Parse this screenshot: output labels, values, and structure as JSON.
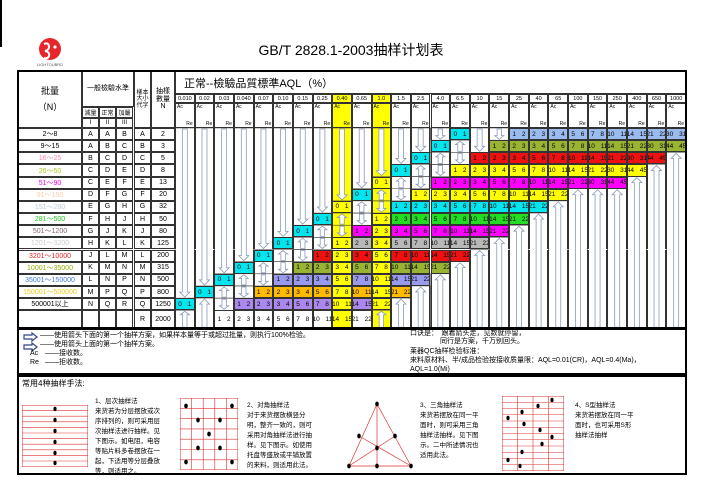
{
  "title": "GB/T 2828.1-2003抽样计划表",
  "logo": {
    "text": "LIGHTOUBRD",
    "color": "#e8252b"
  },
  "header": {
    "lot_label": "批量",
    "lot_unit": "（N）",
    "level_group": "一般檢驗水準",
    "level_names": [
      "減量",
      "正常",
      "加嚴"
    ],
    "level_numerals": [
      "I",
      "II",
      "III"
    ],
    "letter_label": "樣本大小代字",
    "n_label": "抽樣數量",
    "n_symbol": "N",
    "aql_title": "正常--檢驗品質標準AQL（%）",
    "ac": "Ac",
    "re": "Re",
    "aql_values": [
      "0.010",
      "0.02",
      "0.03",
      "0.040",
      "0.07",
      "0.10",
      "0.15",
      "0.25",
      "0.40",
      "0.65",
      "1.0",
      "1.5",
      "2.5",
      "4.0",
      "6.5",
      "10",
      "15",
      "25",
      "40",
      "65",
      "100",
      "150",
      "250",
      "400",
      "650",
      "1000"
    ],
    "highlight_columns": [
      "0.40",
      "1.0"
    ]
  },
  "colors": {
    "highlight": "#ffff00",
    "zero_one": "#00e5ee",
    "arrow": "#8a9ab8"
  },
  "rows": [
    {
      "lot": "2～8",
      "lot_color": "#000000",
      "levels": [
        "A",
        "A",
        "B"
      ],
      "letter": "A",
      "n": "2",
      "color": "#99bbee",
      "cells": [
        "v",
        "v",
        "v",
        "v",
        "v",
        "v",
        "v",
        "v",
        "v",
        "v",
        "v",
        "v",
        "v",
        "v",
        "0 1",
        "v",
        "v",
        "1 2",
        "2 3",
        "3 4",
        "5 6",
        "7 8",
        "10 11",
        "14 15",
        "21 22",
        "30 31"
      ]
    },
    {
      "lot": "9～15",
      "lot_color": "#000000",
      "levels": [
        "A",
        "B",
        "C"
      ],
      "letter": "B",
      "n": "3",
      "color": "#99b433",
      "cells": [
        "v",
        "v",
        "v",
        "v",
        "v",
        "v",
        "v",
        "v",
        "v",
        "v",
        "v",
        "v",
        "v",
        "0 1",
        "^",
        "v",
        "1 2",
        "2 3",
        "3 4",
        "5 6",
        "7 8",
        "10 11",
        "14 15",
        "21 22",
        "30 31",
        "44 45"
      ]
    },
    {
      "lot": "16～25",
      "lot_color": "#ff88aa",
      "levels": [
        "B",
        "C",
        "D"
      ],
      "letter": "C",
      "n": "5",
      "color": "#ee1111",
      "cells": [
        "v",
        "v",
        "v",
        "v",
        "v",
        "v",
        "v",
        "v",
        "v",
        "v",
        "v",
        "v",
        "0 1",
        "^",
        "v",
        "1 2",
        "2 3",
        "3 4",
        "5 6",
        "7 8",
        "10 11",
        "14 15",
        "21 22",
        "30 31",
        "44 45",
        "^"
      ]
    },
    {
      "lot": "26～50",
      "lot_color": "#aacc22",
      "levels": [
        "C",
        "D",
        "E"
      ],
      "letter": "D",
      "n": "8",
      "color": "#ffff00",
      "cells": [
        "v",
        "v",
        "v",
        "v",
        "v",
        "v",
        "v",
        "v",
        "v",
        "v",
        "v",
        "0 1",
        "^",
        "v",
        "1 2",
        "2 3",
        "3 4",
        "5 6",
        "7 8",
        "10 11",
        "14 15",
        "21 22",
        "30 31",
        "44 45",
        "^",
        "^"
      ]
    },
    {
      "lot": "51～90",
      "lot_color": "#ee00ee",
      "levels": [
        "C",
        "E",
        "F"
      ],
      "letter": "E",
      "n": "13",
      "color": "#ff00ff",
      "cells": [
        "v",
        "v",
        "v",
        "v",
        "v",
        "v",
        "v",
        "v",
        "v",
        "v",
        "0 1",
        "^",
        "v",
        "1 2",
        "2 3",
        "3 4",
        "5 6",
        "7 8",
        "10 11",
        "14 15",
        "21 22",
        "30 31",
        "44 45",
        "^",
        "^",
        "^"
      ]
    },
    {
      "lot": "91～150",
      "lot_color": "#ffccaa",
      "levels": [
        "D",
        "F",
        "G"
      ],
      "letter": "F",
      "n": "20",
      "color": "#ffff00",
      "cells": [
        "v",
        "v",
        "v",
        "v",
        "v",
        "v",
        "v",
        "v",
        "v",
        "0 1",
        "^",
        "v",
        "1 2",
        "2 3",
        "3 4",
        "5 6",
        "7 8",
        "10 11",
        "14 15",
        "21 22",
        "^",
        "^",
        "^",
        "^",
        "^",
        "^"
      ]
    },
    {
      "lot": "151～280",
      "lot_color": "#bbccdd",
      "levels": [
        "E",
        "G",
        "H"
      ],
      "letter": "G",
      "n": "32",
      "color": "#00e5ee",
      "cells": [
        "v",
        "v",
        "v",
        "v",
        "v",
        "v",
        "v",
        "v",
        "0 1",
        "^",
        "v",
        "1 2",
        "2 3",
        "3 4",
        "5 6",
        "7 8",
        "10 11",
        "14 15",
        "21 22",
        "^",
        "^",
        "^",
        "^",
        "^",
        "^",
        "^"
      ]
    },
    {
      "lot": "281～500",
      "lot_color": "#22cc22",
      "levels": [
        "F",
        "H",
        "J"
      ],
      "letter": "H",
      "n": "50",
      "color": "#22dd22",
      "cells": [
        "v",
        "v",
        "v",
        "v",
        "v",
        "v",
        "v",
        "0 1",
        "^",
        "v",
        "1 2",
        "2 3",
        "3 4",
        "5 6",
        "7 8",
        "10 11",
        "14 15",
        "21 22",
        "^",
        "^",
        "^",
        "^",
        "^",
        "^",
        "^",
        "^"
      ]
    },
    {
      "lot": "501～1200",
      "lot_color": "#886677",
      "levels": [
        "G",
        "J",
        "K"
      ],
      "letter": "J",
      "n": "80",
      "color": "#ff00ff",
      "cells": [
        "v",
        "v",
        "v",
        "v",
        "v",
        "v",
        "0 1",
        "^",
        "v",
        "1 2",
        "2 3",
        "3 4",
        "5 6",
        "7 8",
        "10 11",
        "14 15",
        "21 22",
        "^",
        "^",
        "^",
        "^",
        "^",
        "^",
        "^",
        "^",
        "^"
      ]
    },
    {
      "lot": "1201～3200",
      "lot_color": "#cccccc",
      "levels": [
        "H",
        "K",
        "L"
      ],
      "letter": "K",
      "n": "125",
      "color": "#b8b8b8",
      "cells": [
        "v",
        "v",
        "v",
        "v",
        "v",
        "0 1",
        "^",
        "v",
        "1 2",
        "2 3",
        "3 4",
        "5 6",
        "7 8",
        "10 11",
        "14 15",
        "21 22",
        "^",
        "^",
        "^",
        "^",
        "^",
        "^",
        "^",
        "^",
        "^",
        "^"
      ]
    },
    {
      "lot": "3201～10000",
      "lot_color": "#ee2222",
      "levels": [
        "J",
        "L",
        "M"
      ],
      "letter": "L",
      "n": "200",
      "color": "#ee1111",
      "cells": [
        "v",
        "v",
        "v",
        "v",
        "0 1",
        "^",
        "v",
        "1 2",
        "2 3",
        "3 4",
        "5 6",
        "7 8",
        "10 11",
        "14 15",
        "21 22",
        "^",
        "^",
        "^",
        "^",
        "^",
        "^",
        "^",
        "^",
        "^",
        "^",
        "^"
      ]
    },
    {
      "lot": "10001～35000",
      "lot_color": "#99aa11",
      "levels": [
        "K",
        "M",
        "N"
      ],
      "letter": "M",
      "n": "315",
      "color": "#99b433",
      "cells": [
        "v",
        "v",
        "v",
        "0 1",
        "^",
        "v",
        "1 2",
        "2 3",
        "3 4",
        "5 6",
        "7 8",
        "10 11",
        "14 15",
        "21 22",
        "^",
        "^",
        "^",
        "^",
        "^",
        "^",
        "^",
        "^",
        "^",
        "^",
        "^",
        "^"
      ]
    },
    {
      "lot": "35001～150000",
      "lot_color": "#4477dd",
      "levels": [
        "L",
        "N",
        "P"
      ],
      "letter": "N",
      "n": "500",
      "color": "#9999ee",
      "cells": [
        "v",
        "v",
        "0 1",
        "^",
        "v",
        "1 2",
        "2 3",
        "3 4",
        "5 6",
        "7 8",
        "10 11",
        "14 15",
        "21 22",
        "^",
        "^",
        "^",
        "^",
        "^",
        "^",
        "^",
        "^",
        "^",
        "^",
        "^",
        "^",
        "^"
      ]
    },
    {
      "lot": "150001～500000",
      "lot_color": "#eecc22",
      "levels": [
        "M",
        "P",
        "Q"
      ],
      "letter": "P",
      "n": "800",
      "color": "#ffbb00",
      "cells": [
        "v",
        "0 1",
        "^",
        "v",
        "1 2",
        "2 3",
        "3 4",
        "5 6",
        "7 8",
        "10 11",
        "14 15",
        "21 22",
        "^",
        "^",
        "^",
        "^",
        "^",
        "^",
        "^",
        "^",
        "^",
        "^",
        "^",
        "^",
        "^",
        "^"
      ]
    },
    {
      "lot": "500001以上",
      "lot_color": "#000000",
      "levels": [
        "N",
        "Q",
        "R"
      ],
      "letter": "Q",
      "n": "1250",
      "color": "#aa88ee",
      "cells": [
        "0 1",
        "^",
        "v",
        "1 2",
        "2 3",
        "3 4",
        "5 6",
        "7 8",
        "10 11",
        "14 15",
        "21 22",
        "^",
        "^",
        "^",
        "^",
        "^",
        "^",
        "^",
        "^",
        "^",
        "^",
        "^",
        "^",
        "^",
        "^",
        "^"
      ]
    },
    {
      "lot": "",
      "lot_color": "#000000",
      "levels": [
        "",
        "",
        ""
      ],
      "letter": "R",
      "n": "2000",
      "color": "#ffffff",
      "cells": [
        "^",
        "^",
        "1 2",
        "2 3",
        "3 4",
        "5 6",
        "7 8",
        "10 11",
        "14 15",
        "21 22",
        "^",
        "^",
        "^",
        "^",
        "^",
        "^",
        "^",
        "^",
        "^",
        "^",
        "^",
        "^",
        "^",
        "^",
        "^",
        "^"
      ]
    }
  ],
  "legend": {
    "down_text": "——使用箭头下面的第一个抽样方案，如果样本量等于或超过批量，则执行100%检验。",
    "up_text": "——使用箭头上面的第一个抽样方案。",
    "ac_label": "Ac",
    "ac_text": "——接收数。",
    "re_label": "Re",
    "re_text": "——拒收数。",
    "rhyme_1": "口诀是：　跟着箭头走，见数就停留，",
    "rhyme_2": "同行是方案，千万别回头。",
    "std_title": "莱器QC抽样检验标准：",
    "std_text": "来料原材料、半/成品检验按接收质量限：AQL=0.01(CR)，AQL=0.4(Ma)，AQL=1.0(Mi)"
  },
  "methods": {
    "title": "常用4种抽样手法:",
    "items": [
      {
        "name": "1、层次抽样法",
        "text": "来货若为分层摆放或次序排列的，则可采用层次抽样法进行抽样。见下图示。如电阻，电容等贴片料多卷摆放在一起，下适用等分层叠放等，则适用之。"
      },
      {
        "name": "2、对角抽样法",
        "text": "对于来货摆放横竖分明，整齐一致的，则可采用对角抽样法进行抽样。见下图示。如使用托盘等盛放或平铺放置的来料，则适用此法。"
      },
      {
        "name": "3、三角抽样法",
        "text": "来货若摆放在同一平面时，则可采用三角抽样法抽样。见下图示。二中所述情况也适用此法。"
      },
      {
        "name": "4、S型抽样法",
        "text": "来货若摆放在同一平面时，也可采用S形抽样法抽样"
      }
    ]
  }
}
